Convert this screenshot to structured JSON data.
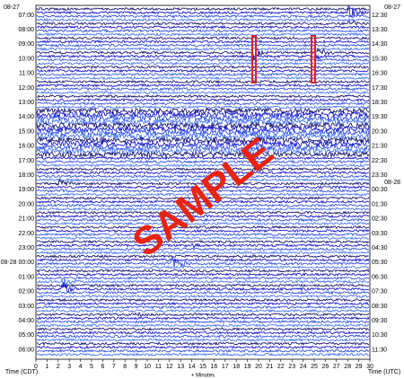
{
  "chart_data": {
    "type": "helicorder",
    "start_date_left": "08-27",
    "start_date_right": "08-27",
    "next_date_right": "08-28",
    "categories": [
      "07:00",
      "08:00",
      "09:00",
      "10:00",
      "11:00",
      "12:00",
      "13:00",
      "14:00",
      "15:00",
      "16:00",
      "17:00",
      "18:00",
      "19:00",
      "20:00",
      "21:00",
      "22:00",
      "23:00",
      "08-28 00:00",
      "01:00",
      "02:00",
      "03:00",
      "04:00",
      "05:00",
      "06:00"
    ],
    "categories_right": [
      "12:30",
      "13:30",
      "14:30",
      "15:30",
      "16:30",
      "17:30",
      "18:30",
      "19:30",
      "20:30",
      "21:30",
      "22:30",
      "23:30",
      "00:30",
      "01:30",
      "02:30",
      "03:30",
      "04:30",
      "05:30",
      "06:30",
      "07:30",
      "08:30",
      "09:30",
      "10:30",
      "11:30"
    ],
    "xlim": [
      0,
      30
    ],
    "xticks": [
      0,
      1,
      2,
      3,
      4,
      5,
      6,
      7,
      8,
      9,
      10,
      11,
      12,
      13,
      14,
      15,
      16,
      17,
      18,
      19,
      20,
      21,
      22,
      23,
      24,
      25,
      26,
      27,
      28,
      29,
      30
    ],
    "x_label": "+ Minutes",
    "y_label_left": "Time (CDT)",
    "y_label_right": "Time (UTC)",
    "watermark": "SAMPLE",
    "trace_colors": [
      "#000066",
      "#0000cc",
      "#1a3fe0",
      "#3366ff"
    ]
  }
}
